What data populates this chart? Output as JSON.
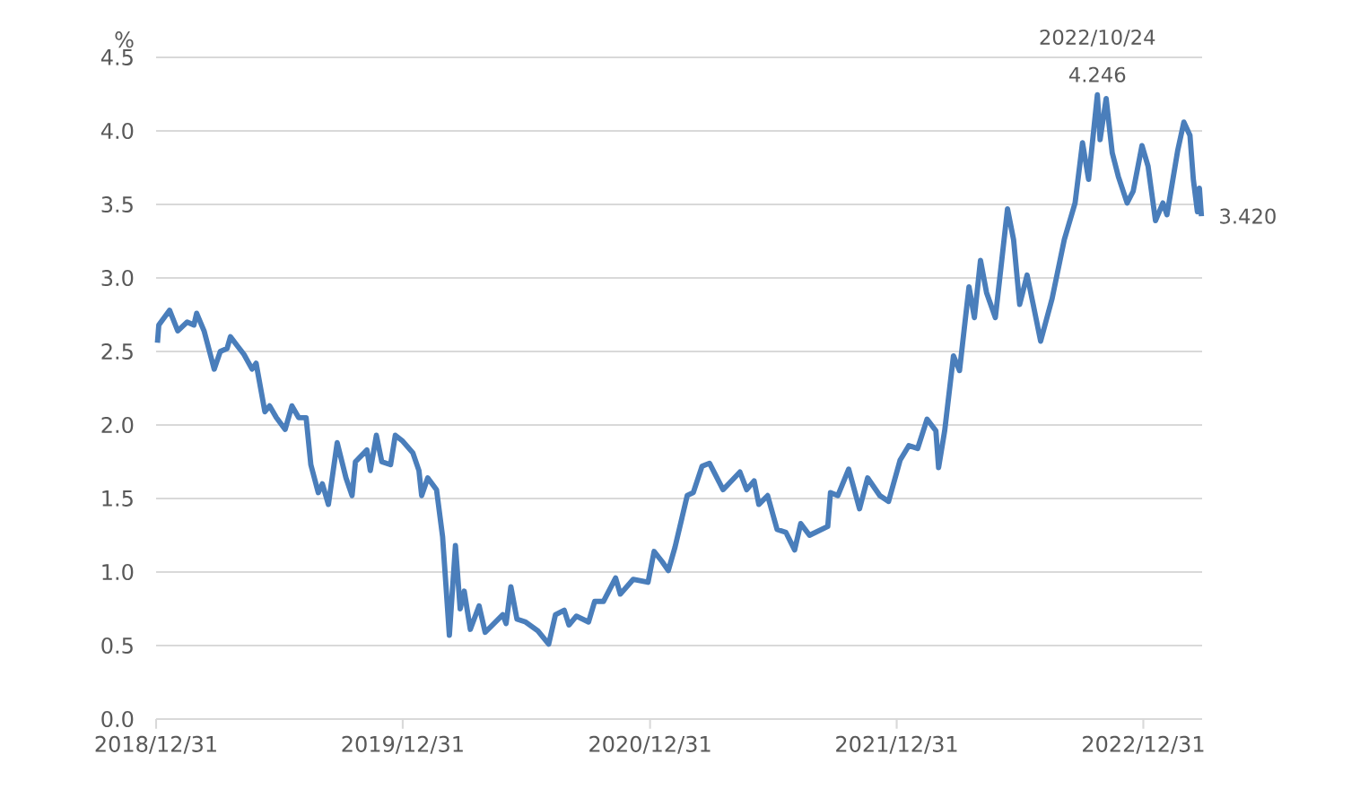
{
  "chart_data": {
    "type": "line",
    "ylabel": "%",
    "color": "#4a7ebb",
    "x": [
      "2019-01-02",
      "2019-01-04",
      "2019-01-20",
      "2019-02-01",
      "2019-02-15",
      "2019-02-25",
      "2019-03-01",
      "2019-03-12",
      "2019-03-27",
      "2019-04-05",
      "2019-04-15",
      "2019-04-20",
      "2019-04-30",
      "2019-05-10",
      "2019-05-22",
      "2019-05-28",
      "2019-06-10",
      "2019-06-17",
      "2019-06-27",
      "2019-07-10",
      "2019-07-20",
      "2019-07-30",
      "2019-08-10",
      "2019-08-17",
      "2019-08-28",
      "2019-09-03",
      "2019-09-12",
      "2019-09-25",
      "2019-10-08",
      "2019-10-17",
      "2019-10-22",
      "2019-11-08",
      "2019-11-13",
      "2019-11-22",
      "2019-11-30",
      "2019-12-13",
      "2019-12-20",
      "2019-12-31",
      "2020-01-15",
      "2020-01-24",
      "2020-01-28",
      "2020-02-06",
      "2020-02-19",
      "2020-02-28",
      "2020-03-09",
      "2020-03-18",
      "2020-03-25",
      "2020-03-31",
      "2020-04-09",
      "2020-04-22",
      "2020-05-01",
      "2020-05-27",
      "2020-06-01",
      "2020-06-08",
      "2020-06-17",
      "2020-06-30",
      "2020-07-18",
      "2020-08-03",
      "2020-08-13",
      "2020-08-26",
      "2020-09-02",
      "2020-09-13",
      "2020-10-01",
      "2020-10-10",
      "2020-10-23",
      "2020-11-10",
      "2020-11-17",
      "2020-12-06",
      "2020-12-28",
      "2021-01-06",
      "2021-01-18",
      "2021-01-27",
      "2021-02-06",
      "2021-02-24",
      "2021-03-05",
      "2021-03-18",
      "2021-03-29",
      "2021-04-18",
      "2021-05-13",
      "2021-05-23",
      "2021-06-03",
      "2021-06-10",
      "2021-06-23",
      "2021-07-07",
      "2021-07-20",
      "2021-08-02",
      "2021-08-11",
      "2021-08-24",
      "2021-09-20",
      "2021-09-24",
      "2021-10-05",
      "2021-10-21",
      "2021-11-06",
      "2021-11-18",
      "2021-12-06",
      "2021-12-19",
      "2022-01-05",
      "2022-01-18",
      "2022-01-31",
      "2022-02-14",
      "2022-02-27",
      "2022-03-03",
      "2022-03-12",
      "2022-03-25",
      "2022-04-03",
      "2022-04-17",
      "2022-04-25",
      "2022-05-04",
      "2022-05-13",
      "2022-05-26",
      "2022-06-13",
      "2022-06-22",
      "2022-07-01",
      "2022-07-12",
      "2022-07-21",
      "2022-08-01",
      "2022-08-18",
      "2022-09-05",
      "2022-09-21",
      "2022-10-02",
      "2022-10-11",
      "2022-10-24",
      "2022-10-28",
      "2022-11-06",
      "2022-11-15",
      "2022-11-24",
      "2022-12-07",
      "2022-12-16",
      "2022-12-29",
      "2023-01-07",
      "2023-01-18",
      "2023-01-29",
      "2023-02-04",
      "2023-02-20",
      "2023-03-01",
      "2023-03-10",
      "2023-03-15",
      "2023-03-21",
      "2023-03-24",
      "2023-03-27"
    ],
    "values": [
      2.56,
      2.68,
      2.78,
      2.64,
      2.7,
      2.68,
      2.76,
      2.64,
      2.38,
      2.5,
      2.52,
      2.6,
      2.54,
      2.48,
      2.38,
      2.42,
      2.09,
      2.13,
      2.05,
      1.97,
      2.13,
      2.05,
      2.05,
      1.73,
      1.54,
      1.6,
      1.46,
      1.88,
      1.64,
      1.52,
      1.75,
      1.83,
      1.69,
      1.93,
      1.75,
      1.73,
      1.93,
      1.89,
      1.81,
      1.69,
      1.52,
      1.64,
      1.56,
      1.24,
      0.57,
      1.18,
      0.75,
      0.87,
      0.61,
      0.77,
      0.59,
      0.71,
      0.65,
      0.9,
      0.68,
      0.66,
      0.6,
      0.51,
      0.71,
      0.74,
      0.64,
      0.7,
      0.66,
      0.8,
      0.8,
      0.96,
      0.85,
      0.95,
      0.93,
      1.14,
      1.07,
      1.01,
      1.17,
      1.52,
      1.54,
      1.72,
      1.74,
      1.56,
      1.68,
      1.56,
      1.62,
      1.46,
      1.52,
      1.29,
      1.27,
      1.15,
      1.33,
      1.25,
      1.31,
      1.54,
      1.52,
      1.7,
      1.43,
      1.64,
      1.52,
      1.48,
      1.76,
      1.86,
      1.84,
      2.04,
      1.96,
      1.71,
      1.96,
      2.47,
      2.37,
      2.94,
      2.73,
      3.12,
      2.9,
      2.73,
      3.47,
      3.26,
      2.82,
      3.02,
      2.82,
      2.57,
      2.86,
      3.26,
      3.51,
      3.92,
      3.67,
      4.246,
      3.94,
      4.22,
      3.85,
      3.69,
      3.51,
      3.59,
      3.9,
      3.76,
      3.39,
      3.51,
      3.43,
      3.87,
      4.06,
      3.97,
      3.67,
      3.45,
      3.61,
      3.42
    ],
    "xlim": [
      "2018-12-31",
      "2023-03-28"
    ],
    "xticks": [
      {
        "value": "2018-12-31",
        "label": "2018/12/31"
      },
      {
        "value": "2019-12-31",
        "label": "2019/12/31"
      },
      {
        "value": "2020-12-31",
        "label": "2020/12/31"
      },
      {
        "value": "2021-12-31",
        "label": "2021/12/31"
      },
      {
        "value": "2022-12-31",
        "label": "2022/12/31"
      }
    ],
    "ylim": [
      0,
      4.5
    ],
    "yticks": [
      {
        "value": 0,
        "label": "0.0"
      },
      {
        "value": 0.5,
        "label": "0.5"
      },
      {
        "value": 1,
        "label": "1.0"
      },
      {
        "value": 1.5,
        "label": "1.5"
      },
      {
        "value": 2,
        "label": "2.0"
      },
      {
        "value": 2.5,
        "label": "2.5"
      },
      {
        "value": 3,
        "label": "3.0"
      },
      {
        "value": 3.5,
        "label": "3.5"
      },
      {
        "value": 4,
        "label": "4.0"
      },
      {
        "value": 4.5,
        "label": "4.5"
      }
    ],
    "grid": "y",
    "annotations": [
      {
        "text": "4.246",
        "x": "2022-10-24",
        "y": 4.246
      },
      {
        "text": "2022/10/24",
        "x": "2022-10-24",
        "y": 4.246
      },
      {
        "text": "3.420",
        "x": "2023-03-27",
        "y": 3.42
      }
    ]
  }
}
